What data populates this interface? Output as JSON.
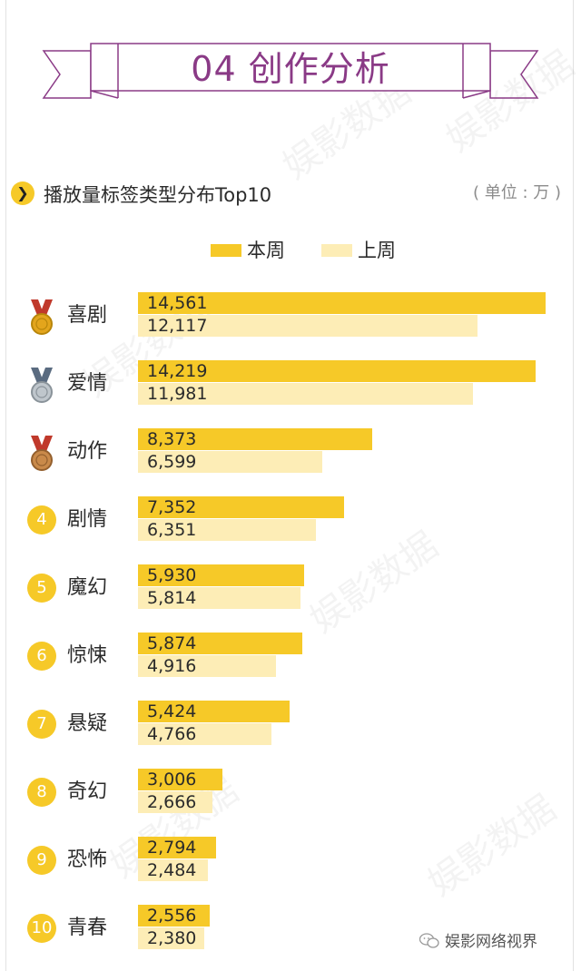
{
  "banner": {
    "title": "04 创作分析"
  },
  "watermark": "娱影数据",
  "section": {
    "title": "播放量标签类型分布Top10",
    "unit": "( 单位 : 万 )"
  },
  "colors": {
    "current": "#f6c928",
    "previous": "#fdedb6",
    "banner": "#8a3a86"
  },
  "legend": [
    {
      "label": "本周",
      "color": "#f6c928"
    },
    {
      "label": "上周",
      "color": "#fdedb6"
    }
  ],
  "chart_data": {
    "type": "bar",
    "orientation": "horizontal",
    "title": "播放量标签类型分布Top10",
    "unit": "万",
    "categories": [
      "喜剧",
      "爱情",
      "动作",
      "剧情",
      "魔幻",
      "惊悚",
      "悬疑",
      "奇幻",
      "恐怖",
      "青春"
    ],
    "ranks": [
      "1",
      "2",
      "3",
      "4",
      "5",
      "6",
      "7",
      "8",
      "9",
      "10"
    ],
    "badge_types": [
      "gold-medal",
      "silver-medal",
      "bronze-medal",
      "number",
      "number",
      "number",
      "number",
      "number",
      "number",
      "number"
    ],
    "series": [
      {
        "name": "本周",
        "values": [
          14561,
          14219,
          8373,
          7352,
          5930,
          5874,
          5424,
          3006,
          2794,
          2556
        ],
        "labels": [
          "14,561",
          "14,219",
          "8,373",
          "7,352",
          "5,930",
          "5,874",
          "5,424",
          "3,006",
          "2,794",
          "2,556"
        ]
      },
      {
        "name": "上周",
        "values": [
          12117,
          11981,
          6599,
          6351,
          5814,
          4916,
          4766,
          2666,
          2484,
          2380
        ],
        "labels": [
          "12,117",
          "11,981",
          "6,599",
          "6,351",
          "5,814",
          "4,916",
          "4,766",
          "2,666",
          "2,484",
          "2,380"
        ]
      }
    ],
    "xlim": [
      0,
      14561
    ],
    "grid": false,
    "legend_position": "top-center"
  },
  "footer": {
    "text": "娱影网络视界"
  }
}
